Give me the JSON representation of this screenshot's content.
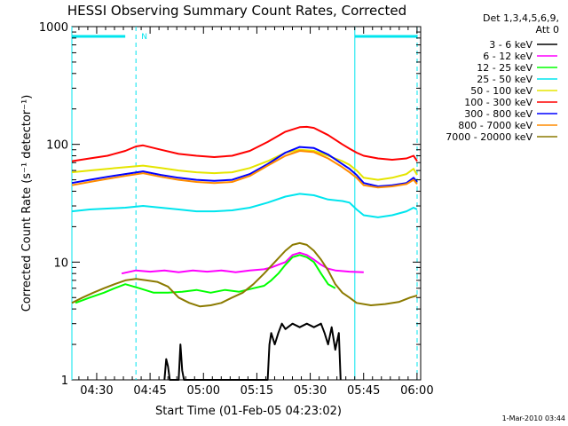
{
  "chart_data": {
    "type": "line",
    "title": "HESSI Observing Summary Count Rates, Corrected",
    "xlabel": "Start Time (01-Feb-05 04:23:02)",
    "ylabel": "Corrected Count Rate (s⁻¹ detector⁻¹)",
    "yscale": "log",
    "ylim": [
      1,
      1000
    ],
    "xlim_minutes": [
      0,
      98
    ],
    "x_unit": "time (hh:mm)",
    "x_ticks": [
      {
        "label": "04:30",
        "t": 6.97
      },
      {
        "label": "04:45",
        "t": 21.97
      },
      {
        "label": "05:00",
        "t": 36.97
      },
      {
        "label": "05:15",
        "t": 51.97
      },
      {
        "label": "05:30",
        "t": 66.97
      },
      {
        "label": "05:45",
        "t": 81.97
      },
      {
        "label": "06:00",
        "t": 96.97
      }
    ],
    "y_ticks": [
      {
        "label": "1",
        "v": 1
      },
      {
        "label": "10",
        "v": 10
      },
      {
        "label": "100",
        "v": 100
      },
      {
        "label": "1000",
        "v": 1000
      }
    ],
    "legend": {
      "position": "top-right",
      "header": [
        "Det 1,3,4,5,6,9,",
        "Att 0"
      ]
    },
    "annotations": {
      "night_flag": "N",
      "saa_bar_color": "#00e5ee",
      "vertical_lines_solid": [
        0,
        79.5
      ],
      "vertical_lines_dashed": [
        18,
        97
      ]
    },
    "series": [
      {
        "name": "3 - 6 keV",
        "color": "#000000",
        "points": [
          [
            26,
            1
          ],
          [
            26.5,
            1.5
          ],
          [
            27,
            1.3
          ],
          [
            27.5,
            1
          ],
          [
            30,
            1
          ],
          [
            30.5,
            2
          ],
          [
            31,
            1.2
          ],
          [
            31.5,
            1
          ],
          [
            55,
            1
          ],
          [
            55.5,
            2
          ],
          [
            56,
            2.5
          ],
          [
            57,
            2
          ],
          [
            58,
            2.5
          ],
          [
            59,
            3
          ],
          [
            60,
            2.7
          ],
          [
            62,
            3
          ],
          [
            64,
            2.8
          ],
          [
            66,
            3
          ],
          [
            68,
            2.8
          ],
          [
            70,
            3
          ],
          [
            71,
            2.5
          ],
          [
            72,
            2
          ],
          [
            73,
            2.8
          ],
          [
            74,
            1.8
          ],
          [
            75,
            2.5
          ],
          [
            75.5,
            1
          ]
        ]
      },
      {
        "name": "6 - 12 keV",
        "color": "#ff00ff",
        "points": [
          [
            14,
            8
          ],
          [
            18,
            8.5
          ],
          [
            22,
            8.3
          ],
          [
            26,
            8.5
          ],
          [
            30,
            8.2
          ],
          [
            34,
            8.5
          ],
          [
            38,
            8.3
          ],
          [
            42,
            8.5
          ],
          [
            46,
            8.2
          ],
          [
            50,
            8.5
          ],
          [
            54,
            8.7
          ],
          [
            56,
            9
          ],
          [
            58,
            9.5
          ],
          [
            60,
            10
          ],
          [
            62,
            11.5
          ],
          [
            64,
            12
          ],
          [
            66,
            11.5
          ],
          [
            68,
            10.5
          ],
          [
            70,
            9.5
          ],
          [
            72,
            8.8
          ],
          [
            74,
            8.5
          ],
          [
            78,
            8.3
          ],
          [
            82,
            8.2
          ]
        ]
      },
      {
        "name": "12 - 25 keV",
        "color": "#00ff00",
        "points": [
          [
            1,
            4.5
          ],
          [
            5,
            5
          ],
          [
            9,
            5.5
          ],
          [
            12,
            6
          ],
          [
            15,
            6.5
          ],
          [
            19,
            6
          ],
          [
            23,
            5.5
          ],
          [
            27,
            5.5
          ],
          [
            31,
            5.6
          ],
          [
            35,
            5.8
          ],
          [
            39,
            5.5
          ],
          [
            43,
            5.8
          ],
          [
            47,
            5.6
          ],
          [
            51,
            6
          ],
          [
            54,
            6.3
          ],
          [
            56,
            7
          ],
          [
            58,
            8
          ],
          [
            60,
            9.5
          ],
          [
            62,
            11
          ],
          [
            64,
            11.5
          ],
          [
            66,
            11
          ],
          [
            68,
            10
          ],
          [
            70,
            8
          ],
          [
            72,
            6.5
          ],
          [
            74,
            6
          ]
        ]
      },
      {
        "name": "25 - 50 keV",
        "color": "#00e5ee",
        "points": [
          [
            0,
            27
          ],
          [
            5,
            28
          ],
          [
            10,
            28.5
          ],
          [
            15,
            29
          ],
          [
            20,
            30
          ],
          [
            25,
            29
          ],
          [
            30,
            28
          ],
          [
            35,
            27
          ],
          [
            40,
            27
          ],
          [
            45,
            27.5
          ],
          [
            50,
            29
          ],
          [
            55,
            32
          ],
          [
            60,
            36
          ],
          [
            64,
            38
          ],
          [
            68,
            37
          ],
          [
            72,
            34
          ],
          [
            76,
            33
          ],
          [
            78,
            32
          ],
          [
            80,
            28
          ],
          [
            82,
            25
          ],
          [
            86,
            24
          ],
          [
            90,
            25
          ],
          [
            94,
            27
          ],
          [
            96,
            29
          ],
          [
            97,
            28
          ]
        ]
      },
      {
        "name": "50 - 100 keV",
        "color": "#e5e500",
        "points": [
          [
            0,
            58
          ],
          [
            5,
            60
          ],
          [
            10,
            62
          ],
          [
            15,
            64
          ],
          [
            20,
            66
          ],
          [
            25,
            63
          ],
          [
            30,
            60
          ],
          [
            35,
            58
          ],
          [
            40,
            57
          ],
          [
            45,
            58
          ],
          [
            50,
            63
          ],
          [
            55,
            72
          ],
          [
            60,
            85
          ],
          [
            64,
            90
          ],
          [
            68,
            88
          ],
          [
            72,
            80
          ],
          [
            76,
            72
          ],
          [
            78,
            67
          ],
          [
            80,
            60
          ],
          [
            82,
            52
          ],
          [
            86,
            50
          ],
          [
            90,
            52
          ],
          [
            94,
            56
          ],
          [
            96,
            62
          ],
          [
            97,
            55
          ]
        ]
      },
      {
        "name": "100 - 300 keV",
        "color": "#ff0000",
        "points": [
          [
            0,
            72
          ],
          [
            5,
            76
          ],
          [
            10,
            80
          ],
          [
            15,
            88
          ],
          [
            18,
            96
          ],
          [
            20,
            98
          ],
          [
            25,
            90
          ],
          [
            30,
            83
          ],
          [
            35,
            80
          ],
          [
            40,
            78
          ],
          [
            45,
            80
          ],
          [
            50,
            88
          ],
          [
            55,
            105
          ],
          [
            60,
            128
          ],
          [
            64,
            140
          ],
          [
            66,
            141
          ],
          [
            68,
            138
          ],
          [
            72,
            120
          ],
          [
            76,
            100
          ],
          [
            78,
            92
          ],
          [
            80,
            85
          ],
          [
            82,
            80
          ],
          [
            86,
            76
          ],
          [
            90,
            74
          ],
          [
            94,
            76
          ],
          [
            96,
            80
          ],
          [
            97,
            72
          ]
        ]
      },
      {
        "name": "300 - 800 keV",
        "color": "#0000ff",
        "points": [
          [
            0,
            47
          ],
          [
            5,
            50
          ],
          [
            10,
            53
          ],
          [
            15,
            56
          ],
          [
            20,
            59
          ],
          [
            25,
            55
          ],
          [
            30,
            52
          ],
          [
            35,
            50
          ],
          [
            40,
            49
          ],
          [
            45,
            50
          ],
          [
            50,
            56
          ],
          [
            55,
            68
          ],
          [
            60,
            85
          ],
          [
            64,
            95
          ],
          [
            68,
            93
          ],
          [
            72,
            82
          ],
          [
            76,
            68
          ],
          [
            78,
            62
          ],
          [
            80,
            55
          ],
          [
            82,
            47
          ],
          [
            86,
            44
          ],
          [
            90,
            45
          ],
          [
            94,
            47
          ],
          [
            96,
            52
          ],
          [
            97,
            48
          ]
        ]
      },
      {
        "name": "800 - 7000 keV",
        "color": "#ff8c00",
        "points": [
          [
            0,
            45
          ],
          [
            5,
            48
          ],
          [
            10,
            51
          ],
          [
            15,
            54
          ],
          [
            20,
            57
          ],
          [
            25,
            53
          ],
          [
            30,
            50
          ],
          [
            35,
            48
          ],
          [
            40,
            47
          ],
          [
            45,
            48
          ],
          [
            50,
            54
          ],
          [
            55,
            66
          ],
          [
            60,
            80
          ],
          [
            64,
            88
          ],
          [
            68,
            86
          ],
          [
            72,
            76
          ],
          [
            76,
            64
          ],
          [
            78,
            58
          ],
          [
            80,
            52
          ],
          [
            82,
            45
          ],
          [
            86,
            43
          ],
          [
            90,
            44
          ],
          [
            94,
            46
          ],
          [
            96,
            50
          ],
          [
            97,
            46
          ]
        ]
      },
      {
        "name": "7000 - 20000 keV",
        "color": "#8b7a00",
        "points": [
          [
            0,
            4.5
          ],
          [
            3,
            5
          ],
          [
            6,
            5.5
          ],
          [
            9,
            6
          ],
          [
            12,
            6.5
          ],
          [
            15,
            7
          ],
          [
            18,
            7.2
          ],
          [
            21,
            7
          ],
          [
            24,
            6.8
          ],
          [
            27,
            6.2
          ],
          [
            30,
            5
          ],
          [
            33,
            4.5
          ],
          [
            36,
            4.2
          ],
          [
            39,
            4.3
          ],
          [
            42,
            4.5
          ],
          [
            45,
            5
          ],
          [
            48,
            5.5
          ],
          [
            51,
            6.5
          ],
          [
            54,
            8
          ],
          [
            57,
            10
          ],
          [
            60,
            12.5
          ],
          [
            62,
            14
          ],
          [
            64,
            14.5
          ],
          [
            66,
            14
          ],
          [
            68,
            12.5
          ],
          [
            70,
            10.5
          ],
          [
            72,
            8.5
          ],
          [
            74,
            6.5
          ],
          [
            76,
            5.5
          ],
          [
            78,
            5
          ],
          [
            80,
            4.5
          ],
          [
            84,
            4.3
          ],
          [
            88,
            4.4
          ],
          [
            92,
            4.6
          ],
          [
            95,
            5
          ],
          [
            97,
            5.2
          ]
        ]
      }
    ]
  },
  "footer": {
    "timestamp": "1-Mar-2010 03:44"
  }
}
